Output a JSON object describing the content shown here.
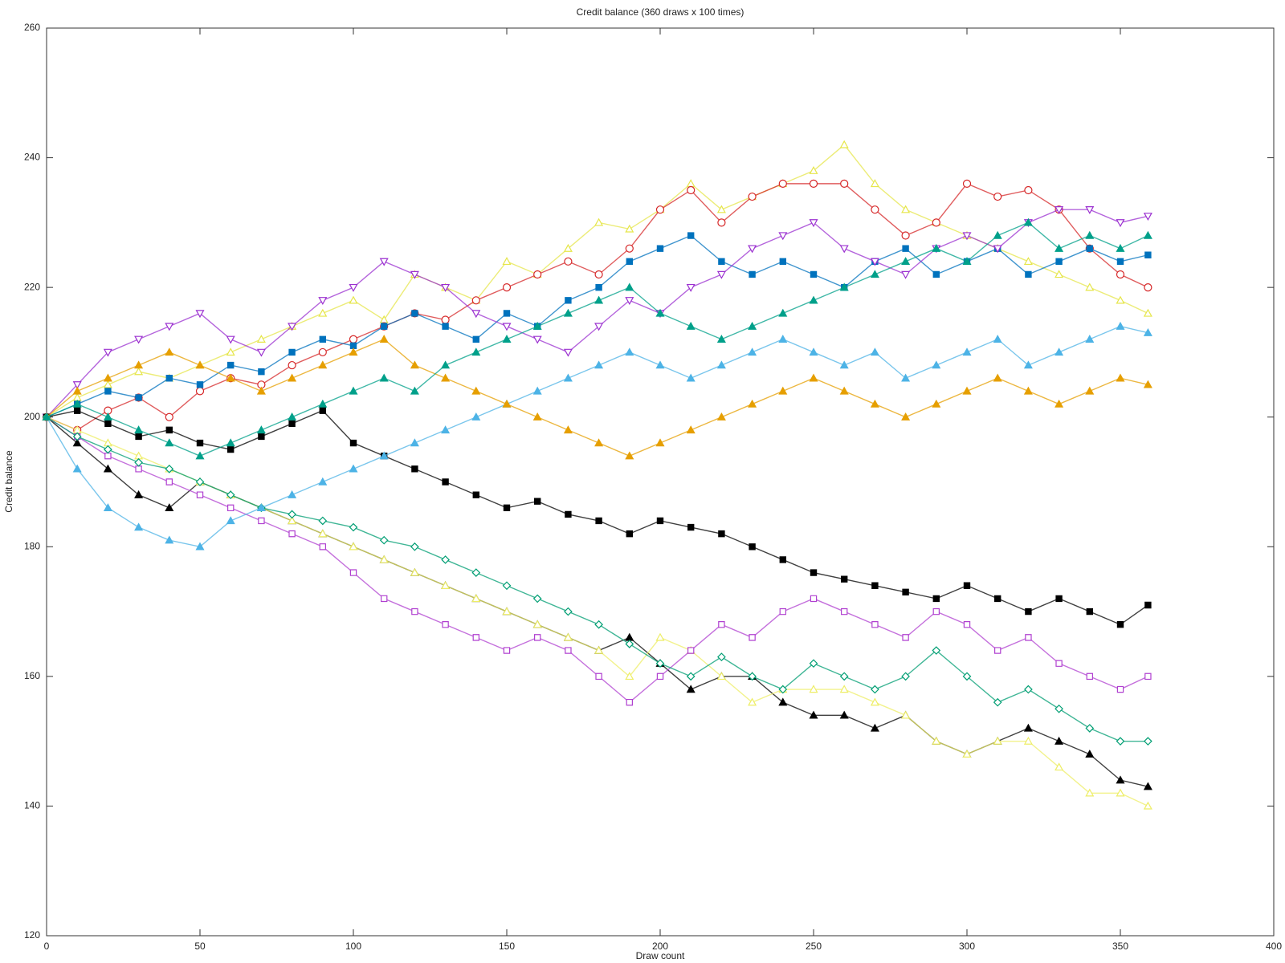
{
  "chart_data": {
    "type": "scatter",
    "title": "Credit balance (360 draws x 100 times)",
    "x_label": "Draw count",
    "y_label": "Credit balance",
    "xlim": [
      0,
      400
    ],
    "xticks": [
      0,
      50,
      100,
      150,
      200,
      250,
      300,
      350,
      400
    ],
    "ylim": [
      120,
      260
    ],
    "yticks": [
      120,
      140,
      160,
      180,
      200,
      220,
      240,
      260
    ],
    "x": [
      0,
      10,
      20,
      30,
      40,
      50,
      60,
      70,
      80,
      90,
      100,
      110,
      120,
      130,
      140,
      150,
      160,
      170,
      180,
      190,
      200,
      210,
      220,
      230,
      240,
      250,
      260,
      270,
      280,
      290,
      300,
      310,
      320,
      330,
      340,
      350,
      359
    ],
    "series": [
      {
        "color": "#e6e64a",
        "marker": "up",
        "filled": false,
        "values": [
          200,
          203,
          205,
          207,
          206,
          208,
          210,
          212,
          214,
          216,
          218,
          215,
          222,
          220,
          218,
          224,
          222,
          226,
          230,
          229,
          232,
          236,
          232,
          234,
          236,
          238,
          242,
          236,
          232,
          230,
          228,
          226,
          224,
          222,
          220,
          218,
          216
        ]
      },
      {
        "color": "#d62728",
        "marker": "circle",
        "filled": false,
        "values": [
          200,
          198,
          201,
          203,
          200,
          204,
          206,
          205,
          208,
          210,
          212,
          214,
          216,
          215,
          218,
          220,
          222,
          224,
          222,
          226,
          232,
          235,
          230,
          234,
          236,
          236,
          236,
          232,
          228,
          230,
          236,
          234,
          235,
          232,
          226,
          222,
          220
        ]
      },
      {
        "color": "#0072bd",
        "marker": "square",
        "filled": true,
        "values": [
          200,
          202,
          204,
          203,
          206,
          205,
          208,
          207,
          210,
          212,
          211,
          214,
          216,
          214,
          212,
          216,
          214,
          218,
          220,
          224,
          226,
          228,
          224,
          222,
          224,
          222,
          220,
          224,
          226,
          222,
          224,
          226,
          222,
          224,
          226,
          224,
          225
        ]
      },
      {
        "color": "#9b30d0",
        "marker": "down",
        "filled": false,
        "values": [
          200,
          205,
          210,
          212,
          214,
          216,
          212,
          210,
          214,
          218,
          220,
          224,
          222,
          220,
          216,
          214,
          212,
          210,
          214,
          218,
          216,
          220,
          222,
          226,
          228,
          230,
          226,
          224,
          222,
          226,
          228,
          226,
          230,
          232,
          232,
          230,
          231
        ]
      },
      {
        "color": "#000000",
        "marker": "up",
        "filled": true,
        "values": [
          200,
          196,
          192,
          188,
          186,
          190,
          188,
          186,
          184,
          182,
          180,
          178,
          176,
          174,
          172,
          170,
          168,
          166,
          164,
          166,
          162,
          158,
          160,
          160,
          156,
          154,
          154,
          152,
          154,
          150,
          148,
          150,
          152,
          150,
          148,
          144,
          143
        ]
      },
      {
        "color": "#eeee66",
        "marker": "up",
        "filled": false,
        "values": [
          200,
          198,
          196,
          194,
          192,
          190,
          188,
          186,
          184,
          182,
          180,
          178,
          176,
          174,
          172,
          170,
          168,
          166,
          164,
          160,
          166,
          164,
          160,
          156,
          158,
          158,
          158,
          156,
          154,
          150,
          148,
          150,
          150,
          146,
          142,
          142,
          140
        ]
      },
      {
        "color": "#b040d0",
        "marker": "square",
        "filled": false,
        "values": [
          200,
          197,
          194,
          192,
          190,
          188,
          186,
          184,
          182,
          180,
          176,
          172,
          170,
          168,
          166,
          164,
          166,
          164,
          160,
          156,
          160,
          164,
          168,
          166,
          170,
          172,
          170,
          168,
          166,
          170,
          168,
          164,
          166,
          162,
          160,
          158,
          160
        ]
      },
      {
        "color": "#000000",
        "marker": "square",
        "filled": true,
        "values": [
          200,
          201,
          199,
          197,
          198,
          196,
          195,
          197,
          199,
          201,
          196,
          194,
          192,
          190,
          188,
          186,
          187,
          185,
          184,
          182,
          184,
          183,
          182,
          180,
          178,
          176,
          175,
          174,
          173,
          172,
          174,
          172,
          170,
          172,
          170,
          168,
          171
        ]
      },
      {
        "color": "#009e73",
        "marker": "diamond",
        "filled": false,
        "values": [
          200,
          197,
          195,
          193,
          192,
          190,
          188,
          186,
          185,
          184,
          183,
          181,
          180,
          178,
          176,
          174,
          172,
          170,
          168,
          165,
          162,
          160,
          163,
          160,
          158,
          162,
          160,
          158,
          160,
          164,
          160,
          156,
          158,
          155,
          152,
          150,
          150
        ]
      },
      {
        "color": "#4db3e6",
        "marker": "up",
        "filled": true,
        "values": [
          200,
          192,
          186,
          183,
          181,
          180,
          184,
          186,
          188,
          190,
          192,
          194,
          196,
          198,
          200,
          202,
          204,
          206,
          208,
          210,
          208,
          206,
          208,
          210,
          212,
          210,
          208,
          210,
          206,
          208,
          210,
          212,
          208,
          210,
          212,
          214,
          213
        ]
      },
      {
        "color": "#e69f00",
        "marker": "up",
        "filled": true,
        "values": [
          200,
          204,
          206,
          208,
          210,
          208,
          206,
          204,
          206,
          208,
          210,
          212,
          208,
          206,
          204,
          202,
          200,
          198,
          196,
          194,
          196,
          198,
          200,
          202,
          204,
          206,
          204,
          202,
          200,
          202,
          204,
          206,
          204,
          202,
          204,
          206,
          205
        ]
      },
      {
        "color": "#00a08a",
        "marker": "up",
        "filled": true,
        "values": [
          200,
          202,
          200,
          198,
          196,
          194,
          196,
          198,
          200,
          202,
          204,
          206,
          204,
          208,
          210,
          212,
          214,
          216,
          218,
          220,
          216,
          214,
          212,
          214,
          216,
          218,
          220,
          222,
          224,
          226,
          224,
          228,
          230,
          226,
          228,
          226,
          228
        ]
      }
    ]
  }
}
